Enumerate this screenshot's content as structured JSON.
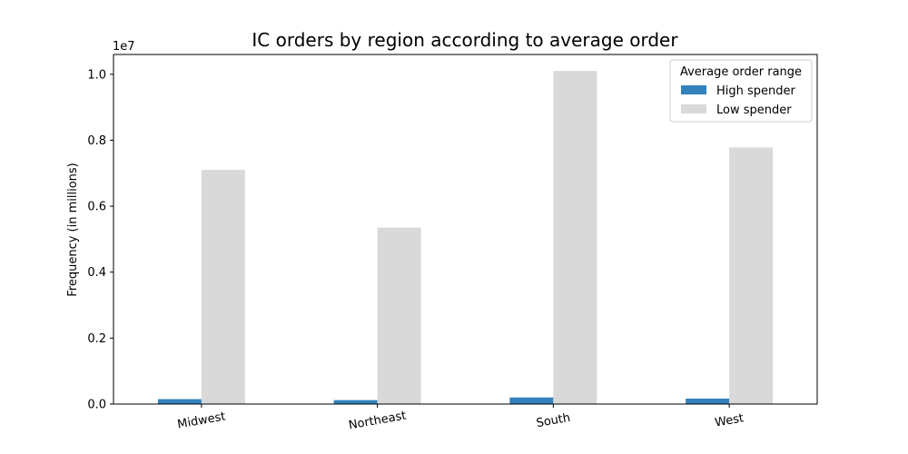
{
  "chart_data": {
    "type": "bar",
    "title": "IC orders by region according to average order",
    "xlabel": "",
    "ylabel": "Frequency (in millions)",
    "y_offset_label": "1e7",
    "categories": [
      "Midwest",
      "Northeast",
      "South",
      "West"
    ],
    "series": [
      {
        "name": "High spender",
        "color": "#3182bd",
        "values": [
          150000,
          120000,
          200000,
          165000
        ]
      },
      {
        "name": "Low spender",
        "color": "#d9d9d9",
        "values": [
          7100000,
          5350000,
          10100000,
          7780000
        ]
      }
    ],
    "ylim": [
      0,
      10600000
    ],
    "yticks": [
      0,
      2000000,
      4000000,
      6000000,
      8000000,
      10000000
    ],
    "ytick_labels": [
      "0.0",
      "0.2",
      "0.4",
      "0.6",
      "0.8",
      "1.0"
    ],
    "legend": {
      "title": "Average order range",
      "placement": "top-right"
    },
    "grid": false
  }
}
